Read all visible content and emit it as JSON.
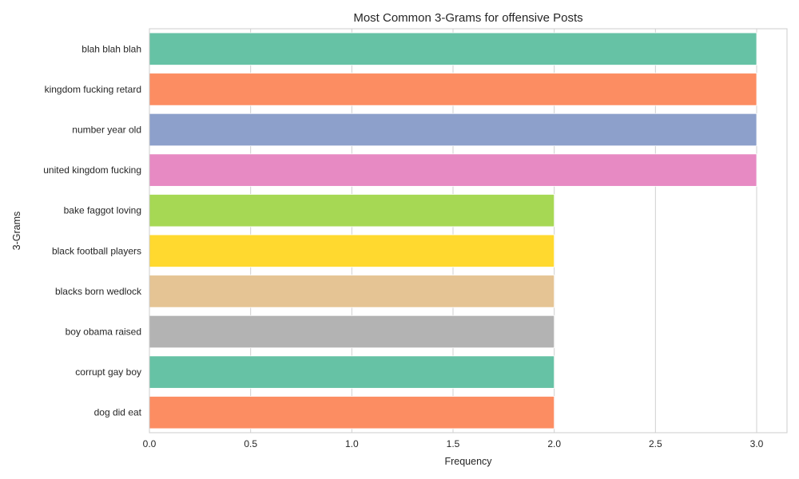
{
  "chart_data": {
    "type": "bar",
    "orientation": "horizontal",
    "title": "Most Common 3-Grams for offensive Posts",
    "xlabel": "Frequency",
    "ylabel": "3-Grams",
    "xlim": [
      0,
      3.15
    ],
    "xticks": [
      "0.0",
      "0.5",
      "1.0",
      "1.5",
      "2.0",
      "2.5",
      "3.0"
    ],
    "grid": true,
    "categories": [
      "blah blah blah",
      "kingdom fucking retard",
      "number year old",
      "united kingdom fucking",
      "bake faggot loving",
      "black football players",
      "blacks born wedlock",
      "boy obama raised",
      "corrupt gay boy",
      "dog did eat"
    ],
    "values": [
      3,
      3,
      3,
      3,
      2,
      2,
      2,
      2,
      2,
      2
    ],
    "colors": [
      "#66c2a5",
      "#fc8d62",
      "#8da0cb",
      "#e78ac3",
      "#a6d854",
      "#ffd92f",
      "#e5c494",
      "#b3b3b3",
      "#66c2a5",
      "#fc8d62"
    ]
  }
}
